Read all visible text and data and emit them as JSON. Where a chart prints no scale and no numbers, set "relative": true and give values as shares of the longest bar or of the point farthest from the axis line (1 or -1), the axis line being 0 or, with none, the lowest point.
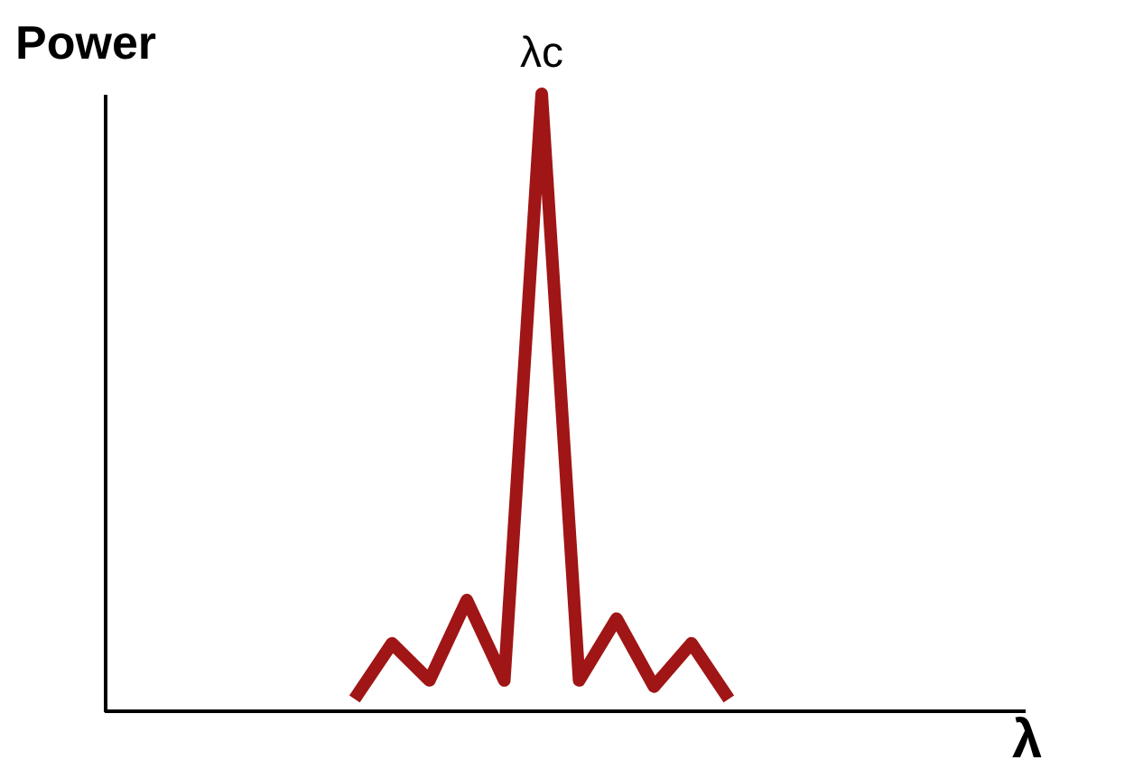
{
  "chart_data": {
    "type": "line",
    "relative": true,
    "tick_labels": false,
    "grid": false,
    "legend": false,
    "marker": "none",
    "line_style": "solid",
    "xlabel": "λ",
    "ylabel": "Power",
    "categories": [
      null,
      null,
      null,
      null,
      null,
      null,
      null,
      null,
      null,
      null,
      null
    ],
    "series": [
      {
        "color": "#a01515",
        "values": [
          0.02,
          0.11,
          0.05,
          0.18,
          0.05,
          1,
          0.05,
          0.15,
          0.04,
          0.11,
          0.02
        ]
      }
    ],
    "annotations": [
      "λc"
    ]
  }
}
